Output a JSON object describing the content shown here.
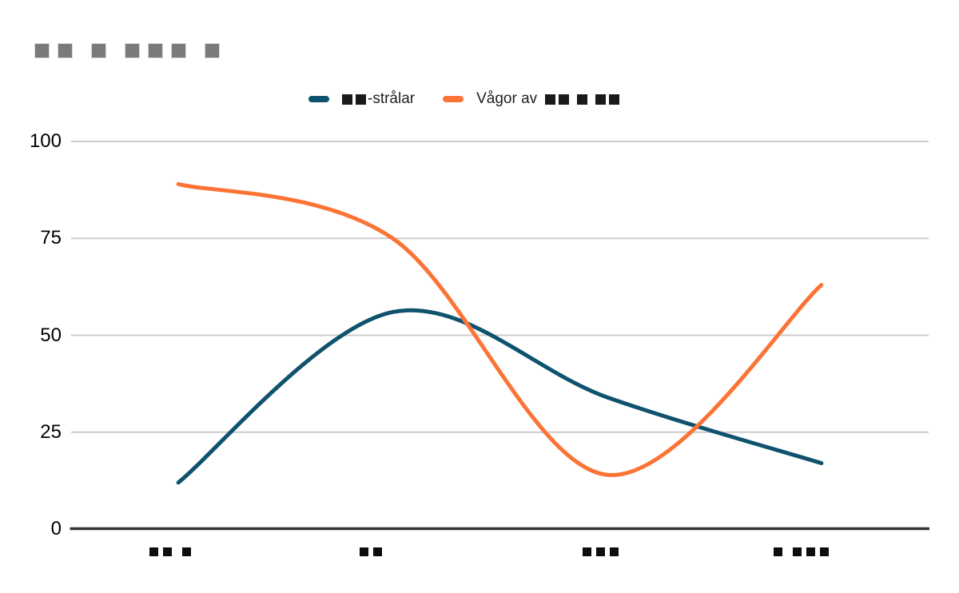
{
  "page": {
    "background": "#ffffff"
  },
  "title": {
    "redacted": true,
    "block_groups": [
      2,
      1,
      3,
      1
    ],
    "block_color": "#7a7a7a",
    "block_border_color": "#d8d8d8"
  },
  "legend": {
    "position": "top",
    "text_color": "#1f1f1f",
    "block_color": "#1a1a1a",
    "items": [
      {
        "swatch_color": "#0f526e",
        "blocks_before": [
          2
        ],
        "text_after": "-strålar"
      },
      {
        "swatch_color": "#fc7336",
        "text_before": "Vågor av",
        "block_groups_after": [
          2,
          1,
          2
        ]
      }
    ]
  },
  "chart_data": {
    "type": "line",
    "curve": "smooth",
    "title_redacted": true,
    "categories_redacted": true,
    "x_label_block_groups": [
      [
        2,
        1
      ],
      [
        2
      ],
      [
        3
      ],
      [
        1,
        3
      ]
    ],
    "series": [
      {
        "name": "■■-strålar",
        "color": "#0f526e",
        "values": [
          12,
          56,
          34,
          17
        ]
      },
      {
        "name": "Vågor av ■■ ■ ■■",
        "color": "#fc7336",
        "values": [
          89,
          75,
          14,
          63
        ]
      }
    ],
    "y_ticks": [
      0,
      25,
      50,
      75,
      100
    ],
    "ylim": [
      0,
      100
    ],
    "grid": true,
    "grid_color": "#cccccc",
    "axis_color": "#333333",
    "tick_label_color": "#000000",
    "x_label_block_color": "#0d0d0d",
    "legend_position": "top",
    "line_width": 5
  }
}
